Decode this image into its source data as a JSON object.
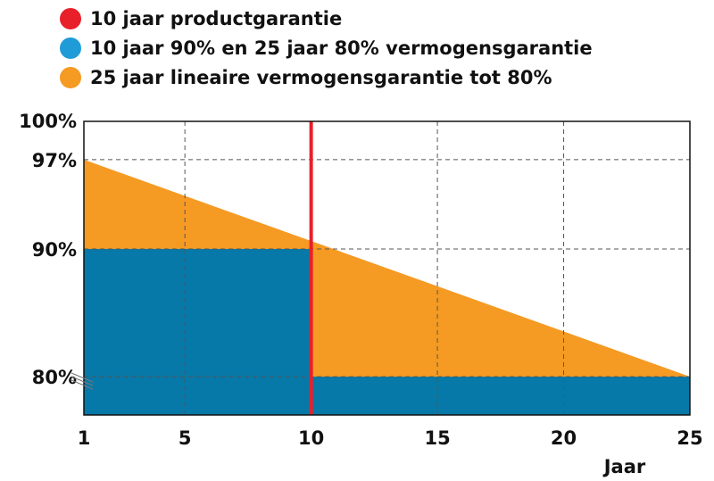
{
  "chart_data": {
    "type": "area",
    "title": "",
    "xlabel": "Jaar",
    "ylabel": "",
    "xlim": [
      1,
      25
    ],
    "ylim": [
      77,
      100
    ],
    "grid": true,
    "legend_position": "top-left",
    "x_ticks": [
      1,
      5,
      10,
      15,
      20,
      25
    ],
    "y_ticks": [
      "100%",
      "97%",
      "90%",
      "80%"
    ],
    "y_tick_values": [
      100,
      97,
      90,
      80
    ],
    "series": [
      {
        "name": "10 jaar productgarantie",
        "color": "#e8202a",
        "kind": "vertical-line",
        "x": 10
      },
      {
        "name": "10 jaar 90% en 25 jaar 80% vermogensgarantie",
        "color": "#0779a8",
        "kind": "step",
        "points": [
          [
            1,
            90
          ],
          [
            10,
            90
          ],
          [
            10,
            80
          ],
          [
            25,
            80
          ]
        ]
      },
      {
        "name": "25 jaar lineaire vermogensgarantie tot  80%",
        "color": "#f59a23",
        "kind": "line",
        "points": [
          [
            1,
            97
          ],
          [
            25,
            80
          ]
        ]
      }
    ]
  },
  "legend_marker_colors": [
    "#e8202a",
    "#1f9bd7",
    "#f59a23"
  ]
}
